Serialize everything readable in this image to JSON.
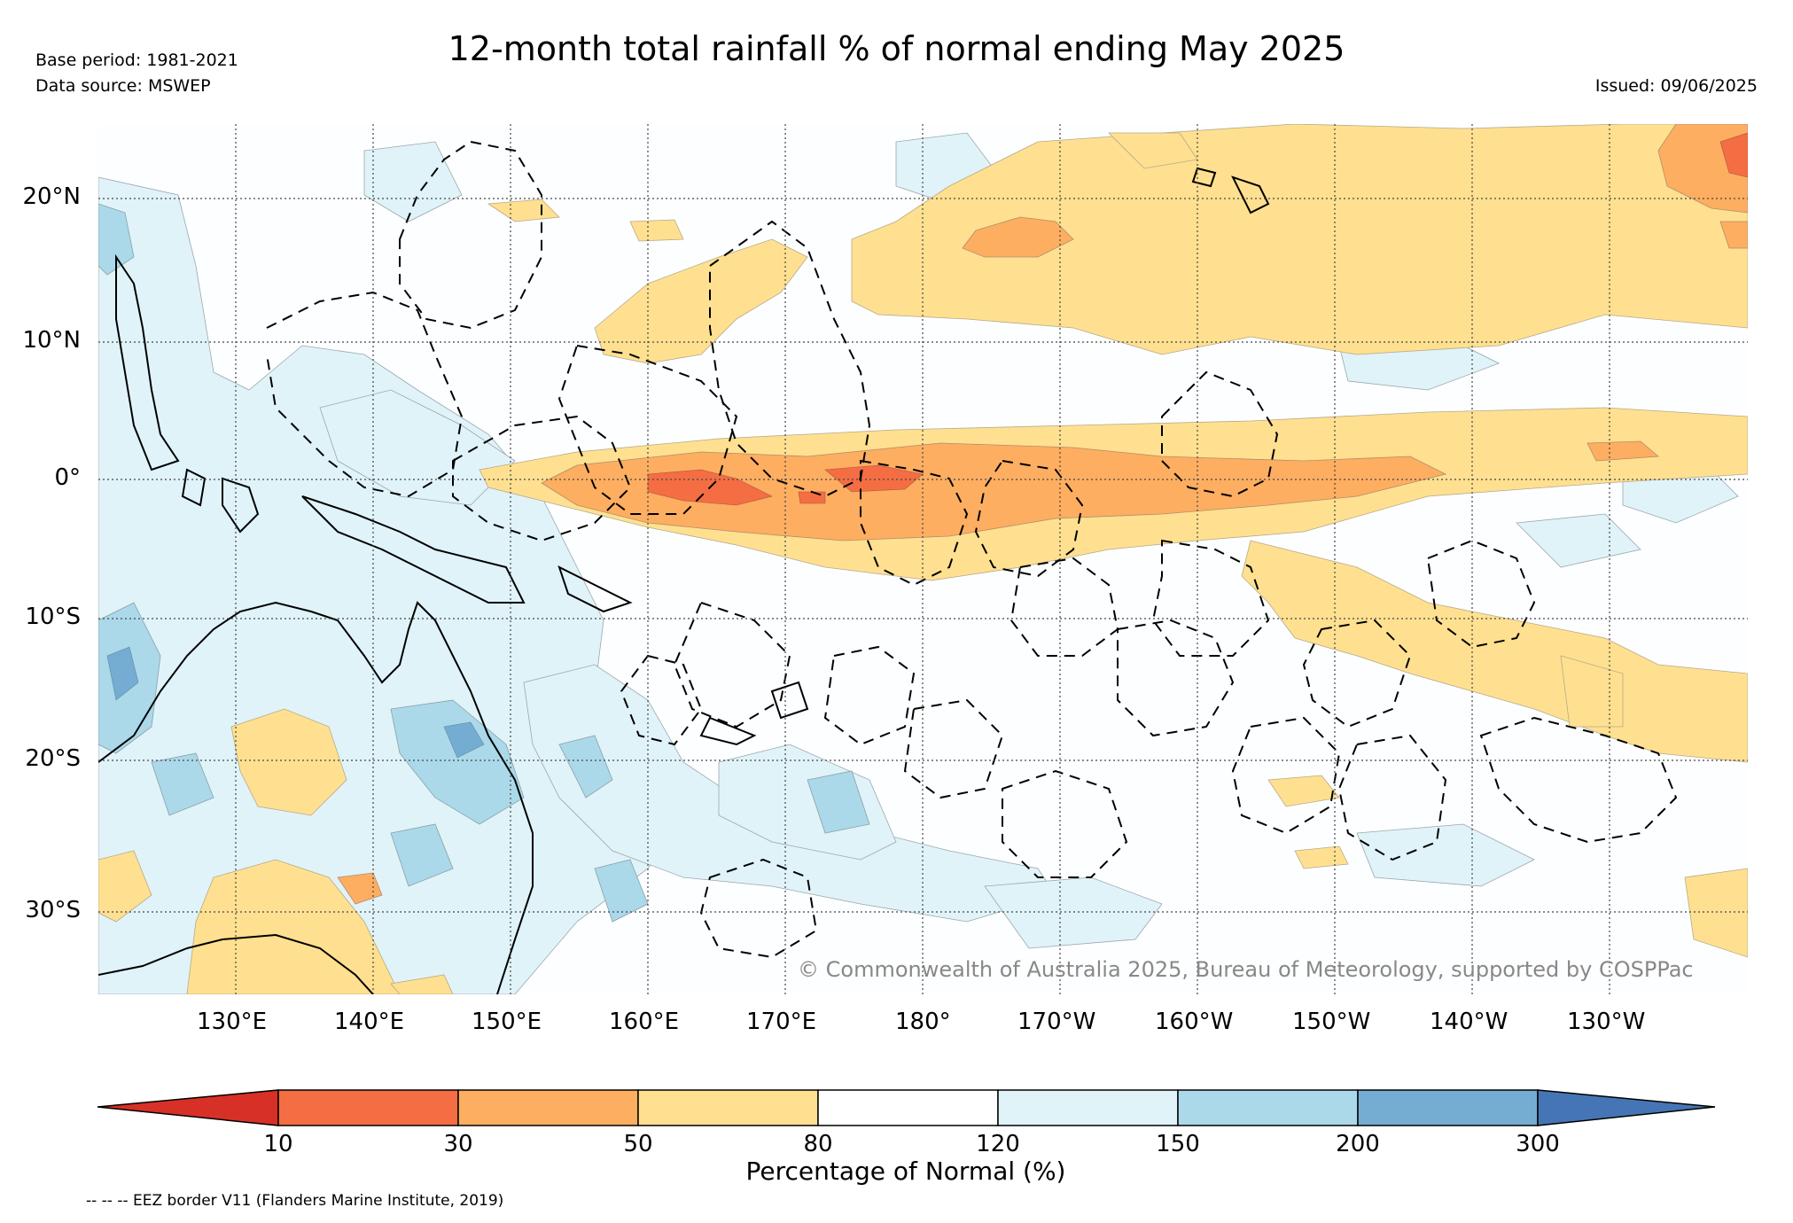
{
  "title": "12-month total rainfall % of normal ending May 2025",
  "meta": {
    "base_period": "Base period: 1981-2021",
    "data_source": "Data source: MSWEP",
    "issued": "Issued: 09/06/2025"
  },
  "map": {
    "lon_labels": [
      "130°E",
      "140°E",
      "150°E",
      "160°E",
      "170°E",
      "180°",
      "170°W",
      "160°W",
      "150°W",
      "140°W",
      "130°W"
    ],
    "lat_labels": [
      "20°N",
      "10°N",
      "0°",
      "10°S",
      "20°S",
      "30°S"
    ],
    "copyright": "© Commonwealth of Australia 2025, Bureau of Meteorology, supported by COSPPac",
    "gridlines": true
  },
  "colorbar": {
    "title": "Percentage of Normal (%)",
    "boundaries": [
      "10",
      "30",
      "50",
      "80",
      "120",
      "150",
      "200",
      "300"
    ],
    "colors": {
      "below_10": "#d73027",
      "10_30": "#f46d43",
      "30_50": "#fdae61",
      "50_80": "#fee090",
      "80_120": "#ffffff",
      "120_150": "#e0f3f8",
      "150_200": "#abd9e9",
      "200_300": "#74add1",
      "above_300": "#4575b4"
    }
  },
  "footnote": "-- -- -- EEZ border V11 (Flanders Marine Institute, 2019)"
}
